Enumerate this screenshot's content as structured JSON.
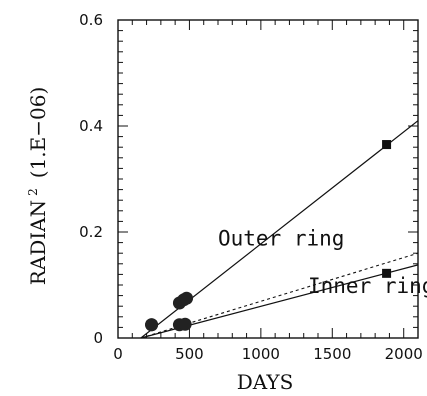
{
  "chart_data": {
    "type": "scatter",
    "title": "",
    "xlabel": "DAYS",
    "ylabel": "RADIAN",
    "ylabel_sup": "2",
    "ylabel_unit": "(1.E−06)",
    "xlim": [
      0,
      2100
    ],
    "ylim": [
      0,
      0.6
    ],
    "x_ticks": [
      0,
      500,
      1000,
      1500,
      2000
    ],
    "x_tick_labels": [
      "0",
      "500",
      "1000",
      "1500",
      "2000"
    ],
    "y_ticks": [
      0,
      0.2,
      0.4,
      0.6
    ],
    "y_tick_labels": [
      "0",
      "0.2",
      "0.4",
      "0.6"
    ],
    "grid": false,
    "legend": "none",
    "series": [
      {
        "name": "Outer ring",
        "points": [
          {
            "x": 235,
            "y": 0.025,
            "marker": "circle"
          },
          {
            "x": 430,
            "y": 0.066,
            "marker": "circle"
          },
          {
            "x": 460,
            "y": 0.072,
            "marker": "circle"
          },
          {
            "x": 480,
            "y": 0.075,
            "marker": "circle"
          },
          {
            "x": 1880,
            "y": 0.365,
            "marker": "square"
          }
        ],
        "fit": {
          "x": [
            160,
            2100
          ],
          "y": [
            0,
            0.41
          ],
          "style": "solid"
        }
      },
      {
        "name": "Inner ring",
        "points": [
          {
            "x": 235,
            "y": 0.025,
            "marker": "circle"
          },
          {
            "x": 430,
            "y": 0.025,
            "marker": "circle"
          },
          {
            "x": 470,
            "y": 0.026,
            "marker": "circle"
          },
          {
            "x": 1880,
            "y": 0.122,
            "marker": "square"
          }
        ],
        "fit": {
          "x": [
            160,
            2100
          ],
          "y": [
            0,
            0.138
          ],
          "style": "solid"
        },
        "fit_alt": {
          "x": [
            160,
            2100
          ],
          "y": [
            0,
            0.16
          ],
          "style": "dotted"
        }
      }
    ],
    "annotations": [
      {
        "text": "Outer ring",
        "x": 700,
        "y": 0.175
      },
      {
        "text": "Inner ring",
        "x": 1330,
        "y": 0.085
      }
    ]
  }
}
